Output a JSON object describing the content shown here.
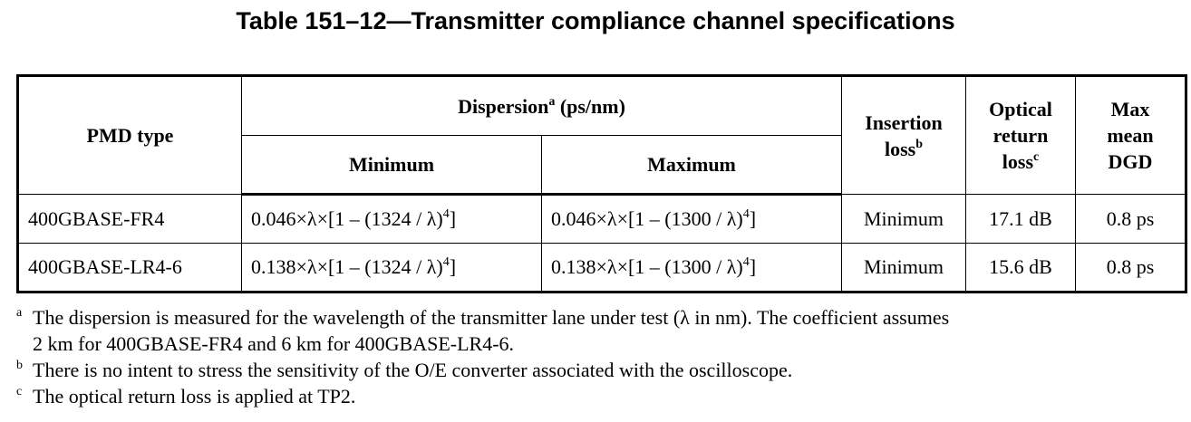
{
  "title": "Table 151–12—Transmitter compliance channel specifications",
  "table": {
    "header": {
      "pmd_type": "PMD type",
      "dispersion": {
        "text": "Dispersion",
        "note": "a",
        "unit": " (ps/nm)"
      },
      "minimum": "Minimum",
      "maximum": "Maximum",
      "insertion_loss": {
        "lines": [
          "Insertion",
          "loss"
        ],
        "note": "b"
      },
      "optical_return_loss": {
        "lines": [
          "Optical",
          "return",
          "loss"
        ],
        "note": "c"
      },
      "max_mean_dgd": {
        "lines": [
          "Max",
          "mean",
          "DGD"
        ]
      }
    },
    "rows": [
      {
        "pmd_type": "400GBASE-FR4",
        "min": {
          "pre": "0.046×λ×[1 – (1324 / λ)",
          "exp": "4",
          "post": "]"
        },
        "max": {
          "pre": "0.046×λ×[1 – (1300 / λ)",
          "exp": "4",
          "post": "]"
        },
        "insertion_loss": "Minimum",
        "optical_return_loss": "17.1 dB",
        "max_mean_dgd": "0.8 ps"
      },
      {
        "pmd_type": "400GBASE-LR4-6",
        "min": {
          "pre": "0.138×λ×[1 – (1324 / λ)",
          "exp": "4",
          "post": "]"
        },
        "max": {
          "pre": "0.138×λ×[1 – (1300 / λ)",
          "exp": "4",
          "post": "]"
        },
        "insertion_loss": "Minimum",
        "optical_return_loss": "15.6 dB",
        "max_mean_dgd": "0.8 ps"
      }
    ]
  },
  "footnotes": [
    {
      "mark": "a",
      "lines": [
        "The dispersion is measured for the wavelength of the transmitter lane under test (λ in nm). The coefficient assumes",
        "2 km for 400GBASE-FR4 and 6 km for 400GBASE-LR4-6."
      ]
    },
    {
      "mark": "b",
      "lines": [
        "There is no intent to stress the sensitivity of the O/E converter associated with the oscilloscope."
      ]
    },
    {
      "mark": "c",
      "lines": [
        "The optical return loss is applied at TP2."
      ]
    }
  ]
}
